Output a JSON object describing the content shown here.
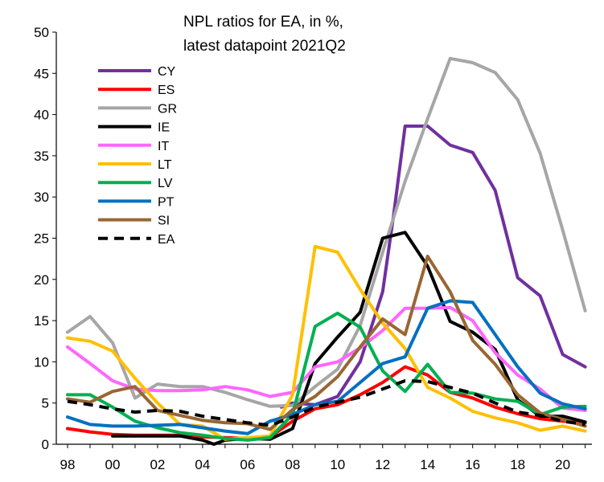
{
  "chart_data": {
    "type": "line",
    "title_lines": [
      "NPL ratios for EA, in %,",
      "latest datapoint 2021Q2"
    ],
    "xlabel": "",
    "ylabel": "",
    "x_tick_labels": [
      "98",
      "00",
      "02",
      "04",
      "06",
      "08",
      "10",
      "12",
      "14",
      "16",
      "18",
      "20"
    ],
    "x_tick_years": [
      1998,
      2000,
      2002,
      2004,
      2006,
      2008,
      2010,
      2012,
      2014,
      2016,
      2018,
      2020
    ],
    "xlim": [
      1997.5,
      2021.3
    ],
    "ylim": [
      0,
      50
    ],
    "y_ticks": [
      0,
      5,
      10,
      15,
      20,
      25,
      30,
      35,
      40,
      45,
      50
    ],
    "grid": false,
    "legend_position": "top-left",
    "series": [
      {
        "name": "CY",
        "color": "#7030A0",
        "dash": false,
        "points": [
          [
            2007.5,
            4.5
          ],
          [
            2008,
            5
          ],
          [
            2009,
            4.8
          ],
          [
            2010,
            5.8
          ],
          [
            2011,
            10
          ],
          [
            2012,
            18.5
          ],
          [
            2012.5,
            28
          ],
          [
            2013,
            38.6
          ],
          [
            2014,
            38.6
          ],
          [
            2015,
            36.3
          ],
          [
            2016,
            35.4
          ],
          [
            2017,
            30.8
          ],
          [
            2018,
            20.2
          ],
          [
            2019,
            18
          ],
          [
            2020,
            10.9
          ],
          [
            2021,
            9.4
          ]
        ]
      },
      {
        "name": "ES",
        "color": "#FF0000",
        "dash": false,
        "points": [
          [
            1998,
            1.9
          ],
          [
            1999,
            1.5
          ],
          [
            2000,
            1.2
          ],
          [
            2001,
            1.1
          ],
          [
            2002,
            1.1
          ],
          [
            2003,
            1.1
          ],
          [
            2004,
            0.9
          ],
          [
            2005,
            0.8
          ],
          [
            2006,
            0.7
          ],
          [
            2007,
            0.9
          ],
          [
            2008,
            2.8
          ],
          [
            2009,
            4.3
          ],
          [
            2010,
            4.8
          ],
          [
            2011,
            6
          ],
          [
            2012,
            7.5
          ],
          [
            2013,
            9.4
          ],
          [
            2014,
            8.4
          ],
          [
            2015,
            6.3
          ],
          [
            2016,
            5.6
          ],
          [
            2017,
            4.5
          ],
          [
            2018,
            3.7
          ],
          [
            2019,
            3.1
          ],
          [
            2020,
            2.8
          ],
          [
            2021,
            2.6
          ]
        ]
      },
      {
        "name": "GR",
        "color": "#A6A6A6",
        "dash": false,
        "points": [
          [
            1998,
            13.6
          ],
          [
            1999,
            15.5
          ],
          [
            2000,
            12.3
          ],
          [
            2001,
            5.6
          ],
          [
            2002,
            7.3
          ],
          [
            2003,
            7
          ],
          [
            2004,
            7
          ],
          [
            2005,
            6.3
          ],
          [
            2006,
            5.4
          ],
          [
            2007,
            4.6
          ],
          [
            2008,
            4.7
          ],
          [
            2009,
            7
          ],
          [
            2010,
            9.1
          ],
          [
            2011,
            14.4
          ],
          [
            2012,
            23.3
          ],
          [
            2013,
            31.9
          ],
          [
            2014,
            39.5
          ],
          [
            2015,
            46.8
          ],
          [
            2016,
            46.3
          ],
          [
            2017,
            45.1
          ],
          [
            2018,
            41.8
          ],
          [
            2019,
            35.3
          ],
          [
            2020,
            26
          ],
          [
            2021,
            16.2
          ]
        ]
      },
      {
        "name": "IE",
        "color": "#000000",
        "dash": false,
        "points": [
          [
            2000,
            1
          ],
          [
            2001,
            1
          ],
          [
            2002,
            1
          ],
          [
            2003,
            1
          ],
          [
            2004,
            0.5
          ],
          [
            2004.5,
            0
          ],
          [
            2005,
            0.5
          ],
          [
            2006,
            0.7
          ],
          [
            2007,
            0.6
          ],
          [
            2008,
            1.9
          ],
          [
            2009,
            9.8
          ],
          [
            2010,
            13
          ],
          [
            2011,
            16
          ],
          [
            2012,
            25
          ],
          [
            2013,
            25.7
          ],
          [
            2014,
            21.6
          ],
          [
            2015,
            14.9
          ],
          [
            2016,
            13.6
          ],
          [
            2017,
            11.5
          ],
          [
            2018,
            5.4
          ],
          [
            2019,
            3.4
          ],
          [
            2020,
            3.4
          ],
          [
            2021,
            2.7
          ]
        ]
      },
      {
        "name": "IT",
        "color": "#FF66FF",
        "dash": false,
        "points": [
          [
            1998,
            11.8
          ],
          [
            1999,
            9.8
          ],
          [
            2000,
            7.7
          ],
          [
            2001,
            6.7
          ],
          [
            2002,
            6.5
          ],
          [
            2003,
            6.5
          ],
          [
            2004,
            6.6
          ],
          [
            2005,
            7
          ],
          [
            2006,
            6.6
          ],
          [
            2007,
            5.8
          ],
          [
            2008,
            6.3
          ],
          [
            2009,
            9.4
          ],
          [
            2010,
            10
          ],
          [
            2011,
            11.7
          ],
          [
            2012,
            13.8
          ],
          [
            2013,
            16.5
          ],
          [
            2014,
            16.5
          ],
          [
            2015,
            16.6
          ],
          [
            2016,
            15
          ],
          [
            2017,
            11.1
          ],
          [
            2018,
            8.4
          ],
          [
            2019,
            6.7
          ],
          [
            2020,
            4.4
          ],
          [
            2021,
            4.1
          ]
        ]
      },
      {
        "name": "LT",
        "color": "#FFC000",
        "dash": false,
        "points": [
          [
            1998,
            12.9
          ],
          [
            1999,
            12.5
          ],
          [
            2000,
            11.3
          ],
          [
            2001,
            8
          ],
          [
            2002,
            5
          ],
          [
            2003,
            2.4
          ],
          [
            2004,
            2.2
          ],
          [
            2005,
            0.6
          ],
          [
            2006,
            0.8
          ],
          [
            2007,
            1
          ],
          [
            2008,
            6
          ],
          [
            2009,
            24
          ],
          [
            2010,
            23.3
          ],
          [
            2011,
            18.8
          ],
          [
            2012,
            14.7
          ],
          [
            2013,
            11.6
          ],
          [
            2014,
            6.9
          ],
          [
            2015,
            5.6
          ],
          [
            2016,
            4
          ],
          [
            2017,
            3.2
          ],
          [
            2018,
            2.6
          ],
          [
            2019,
            1.7
          ],
          [
            2020,
            2.2
          ],
          [
            2021,
            1.6
          ]
        ]
      },
      {
        "name": "LV",
        "color": "#00B050",
        "dash": false,
        "points": [
          [
            1998,
            6
          ],
          [
            1999,
            6
          ],
          [
            2000,
            4.5
          ],
          [
            2001,
            2.8
          ],
          [
            2002,
            2
          ],
          [
            2003,
            1.4
          ],
          [
            2004,
            1.1
          ],
          [
            2005,
            0.7
          ],
          [
            2006,
            0.5
          ],
          [
            2007,
            0.8
          ],
          [
            2008,
            3.6
          ],
          [
            2009,
            14.3
          ],
          [
            2010,
            15.9
          ],
          [
            2011,
            14.2
          ],
          [
            2012,
            8.9
          ],
          [
            2013,
            6.4
          ],
          [
            2014,
            9.7
          ],
          [
            2015,
            6.3
          ],
          [
            2016,
            6.2
          ],
          [
            2017,
            5.5
          ],
          [
            2018,
            5.2
          ],
          [
            2019,
            3.6
          ],
          [
            2020,
            4.5
          ],
          [
            2021,
            4.6
          ]
        ]
      },
      {
        "name": "PT",
        "color": "#0070C0",
        "dash": false,
        "points": [
          [
            1998,
            3.3
          ],
          [
            1999,
            2.4
          ],
          [
            2000,
            2.2
          ],
          [
            2001,
            2.2
          ],
          [
            2002,
            2.3
          ],
          [
            2003,
            2.4
          ],
          [
            2004,
            2
          ],
          [
            2005,
            1.6
          ],
          [
            2006,
            1.3
          ],
          [
            2007,
            2.8
          ],
          [
            2008,
            3.6
          ],
          [
            2009,
            4.8
          ],
          [
            2010,
            5.2
          ],
          [
            2011,
            7.5
          ],
          [
            2012,
            9.8
          ],
          [
            2013,
            10.6
          ],
          [
            2014,
            16.5
          ],
          [
            2015,
            17.4
          ],
          [
            2016,
            17.2
          ],
          [
            2017,
            13.3
          ],
          [
            2018,
            9.4
          ],
          [
            2019,
            6.2
          ],
          [
            2020,
            4.9
          ],
          [
            2021,
            4.3
          ]
        ]
      },
      {
        "name": "SI",
        "color": "#996633",
        "dash": false,
        "points": [
          [
            1998,
            5.5
          ],
          [
            1999,
            5.1
          ],
          [
            2000,
            6.4
          ],
          [
            2001,
            7
          ],
          [
            2002,
            4.1
          ],
          [
            2003,
            3.5
          ],
          [
            2004,
            2.9
          ],
          [
            2005,
            2.6
          ],
          [
            2006,
            2.5
          ],
          [
            2007,
            1.8
          ],
          [
            2008,
            4.2
          ],
          [
            2009,
            5.8
          ],
          [
            2010,
            8.2
          ],
          [
            2011,
            11.8
          ],
          [
            2012,
            15.2
          ],
          [
            2013,
            13.3
          ],
          [
            2014,
            22.8
          ],
          [
            2015,
            18.5
          ],
          [
            2016,
            12.6
          ],
          [
            2017,
            9.7
          ],
          [
            2018,
            6
          ],
          [
            2019,
            3.8
          ],
          [
            2020,
            3
          ],
          [
            2021,
            2.2
          ]
        ]
      },
      {
        "name": "EA",
        "color": "#000000",
        "dash": true,
        "points": [
          [
            1998,
            5.2
          ],
          [
            1999,
            4.8
          ],
          [
            2000,
            4.3
          ],
          [
            2001,
            3.9
          ],
          [
            2002,
            4.1
          ],
          [
            2003,
            4
          ],
          [
            2004,
            3.4
          ],
          [
            2005,
            3
          ],
          [
            2006,
            2.6
          ],
          [
            2007,
            2.3
          ],
          [
            2008,
            3.3
          ],
          [
            2009,
            4.5
          ],
          [
            2010,
            5.1
          ],
          [
            2011,
            5.7
          ],
          [
            2012,
            6.7
          ],
          [
            2013,
            7.7
          ],
          [
            2014,
            7.6
          ],
          [
            2015,
            6.9
          ],
          [
            2016,
            6.2
          ],
          [
            2017,
            5
          ],
          [
            2018,
            3.9
          ],
          [
            2019,
            3.5
          ],
          [
            2020,
            2.8
          ],
          [
            2021,
            2.4
          ]
        ]
      }
    ]
  }
}
